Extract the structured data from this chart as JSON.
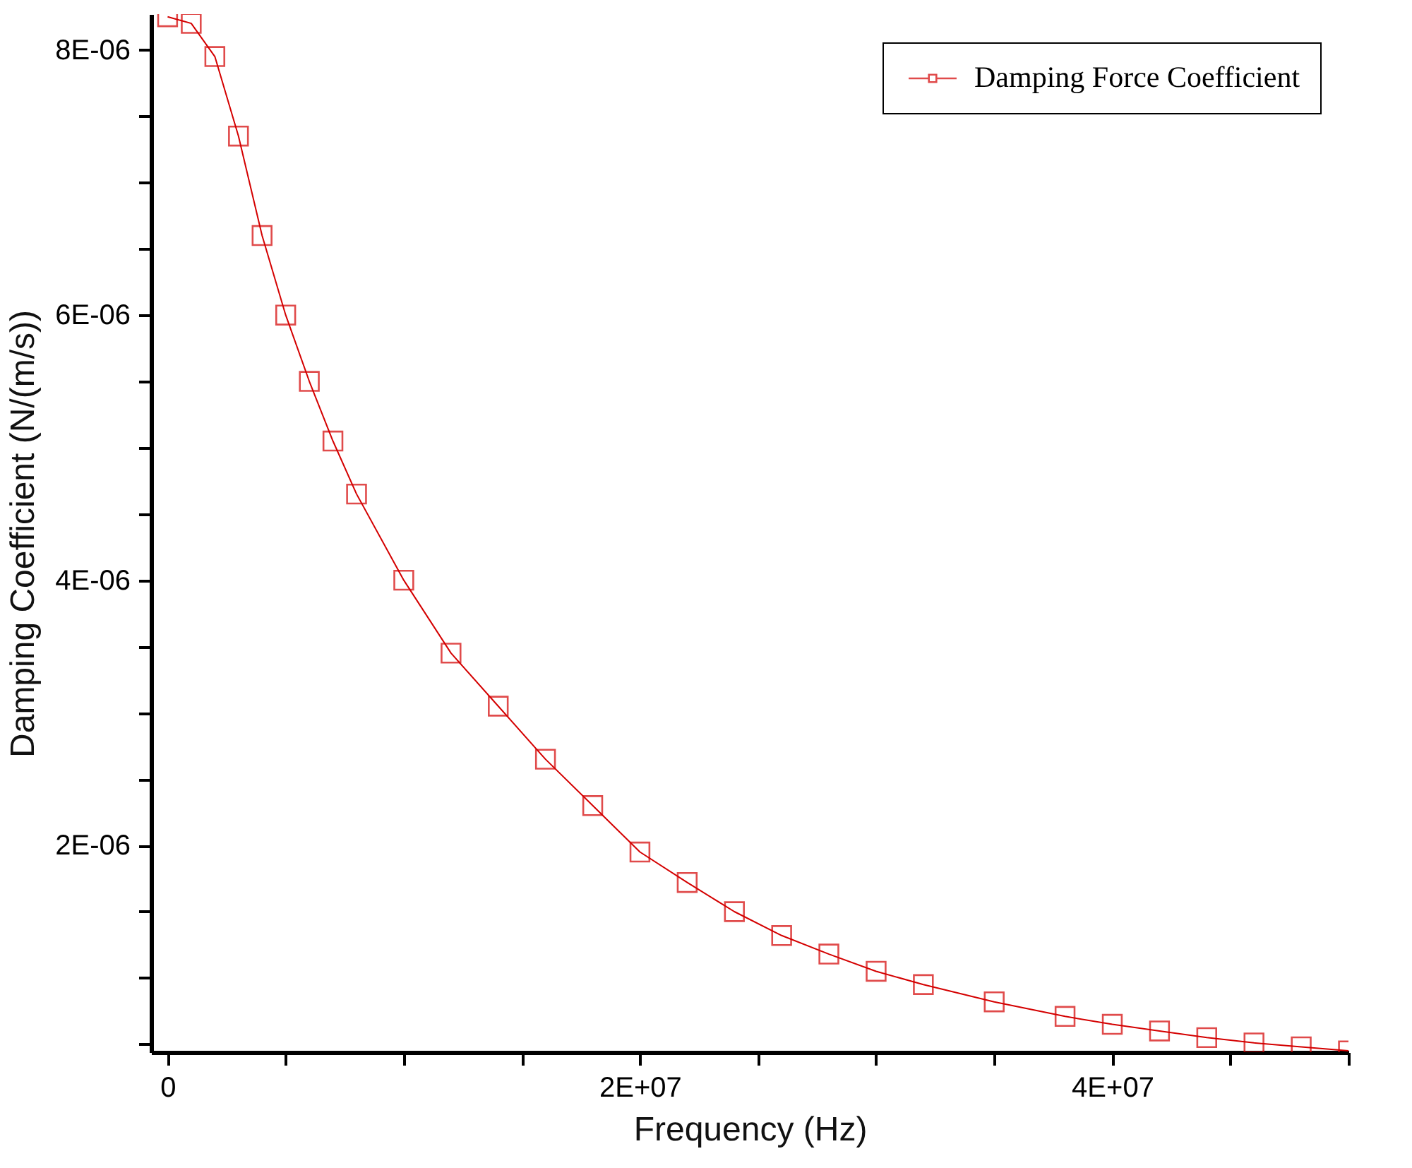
{
  "chart_data": {
    "type": "line",
    "xlabel": "Frequency (Hz)",
    "ylabel": "Damping Coefficient (N/(m/s))",
    "x": [
      0,
      1000000,
      2000000,
      3000000,
      4000000,
      5000000,
      6000000,
      7000000,
      8000000,
      10000000,
      12000000,
      14000000,
      16000000,
      18000000,
      20000000,
      22000000,
      24000000,
      26000000,
      28000000,
      30000000,
      32000000,
      35000000,
      38000000,
      40000000,
      42000000,
      44000000,
      46000000,
      48000000,
      50000000
    ],
    "xlim": [
      -700000,
      50000000
    ],
    "xticks": [
      {
        "value": 0,
        "label": "0"
      },
      {
        "value": 5000000,
        "label": null
      },
      {
        "value": 10000000,
        "label": null
      },
      {
        "value": 15000000,
        "label": null
      },
      {
        "value": 20000000,
        "label": "2E+07"
      },
      {
        "value": 25000000,
        "label": null
      },
      {
        "value": 30000000,
        "label": null
      },
      {
        "value": 35000000,
        "label": null
      },
      {
        "value": 40000000,
        "label": "4E+07"
      },
      {
        "value": 45000000,
        "label": null
      },
      {
        "value": 50000000,
        "label": null
      }
    ],
    "ylim": [
      4.4e-07,
      8.27e-06
    ],
    "yticks": [
      {
        "value": 5e-07,
        "label": null
      },
      {
        "value": 1e-06,
        "label": null
      },
      {
        "value": 1.5e-06,
        "label": null
      },
      {
        "value": 2e-06,
        "label": "2E-06"
      },
      {
        "value": 2.5e-06,
        "label": null
      },
      {
        "value": 3e-06,
        "label": null
      },
      {
        "value": 3.5e-06,
        "label": null
      },
      {
        "value": 4e-06,
        "label": "4E-06"
      },
      {
        "value": 4.5e-06,
        "label": null
      },
      {
        "value": 5e-06,
        "label": null
      },
      {
        "value": 5.5e-06,
        "label": null
      },
      {
        "value": 6e-06,
        "label": "6E-06"
      },
      {
        "value": 6.5e-06,
        "label": null
      },
      {
        "value": 7e-06,
        "label": null
      },
      {
        "value": 7.5e-06,
        "label": null
      },
      {
        "value": 8e-06,
        "label": "8E-06"
      }
    ],
    "legend": "top right",
    "marker": "square",
    "series": [
      {
        "name": "Damping Force Coefficient",
        "color": "#d40000",
        "values": [
          8.25e-06,
          8.2e-06,
          7.95e-06,
          7.35e-06,
          6.6e-06,
          6e-06,
          5.5e-06,
          5.05e-06,
          4.65e-06,
          4e-06,
          3.45e-06,
          3.05e-06,
          2.65e-06,
          2.3e-06,
          1.95e-06,
          1.72e-06,
          1.5e-06,
          1.32e-06,
          1.18e-06,
          1.05e-06,
          9.5e-07,
          8.2e-07,
          7.1e-07,
          6.5e-07,
          6e-07,
          5.5e-07,
          5.1e-07,
          4.8e-07,
          4.5e-07
        ]
      }
    ]
  }
}
